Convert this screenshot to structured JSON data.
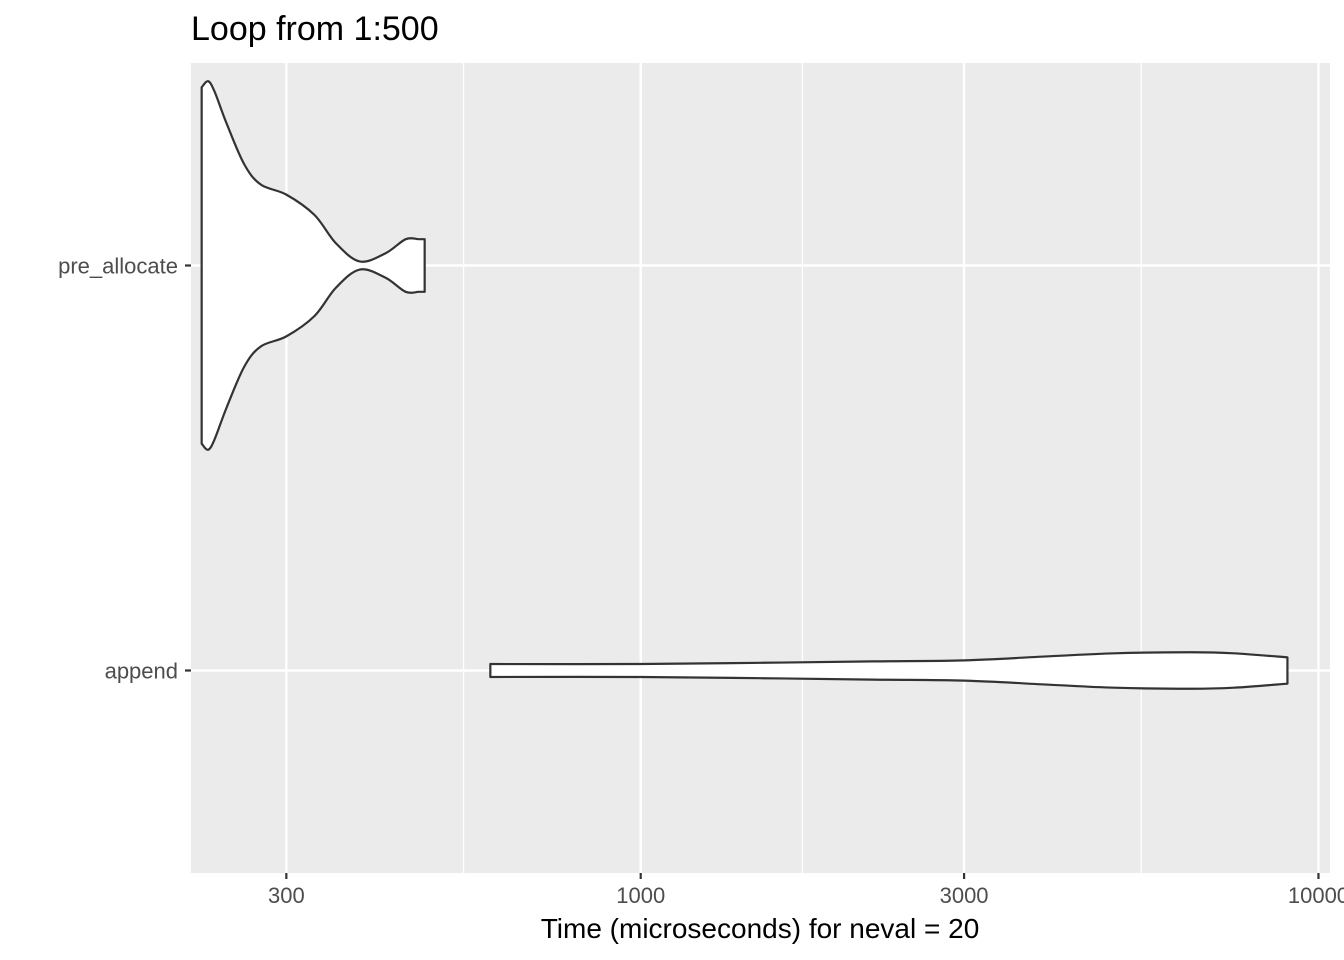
{
  "chart_data": {
    "type": "violin",
    "title": "Loop from 1:500",
    "xlabel": "Time (microseconds) for neval = 20",
    "ylabel": "",
    "x_scale": "log10",
    "xlim": [
      217,
      10400
    ],
    "x_ticks": [
      300,
      1000,
      3000,
      10000
    ],
    "x_tick_labels": [
      "300",
      "1000",
      "3000",
      "10000"
    ],
    "categories": [
      "pre_allocate",
      "append"
    ],
    "grid": true,
    "background": "#ebebeb",
    "gridline_color": "#ffffff",
    "violin_fill": "#ffffff",
    "violin_stroke": "#333333",
    "series": [
      {
        "category": "pre_allocate",
        "min": 225,
        "max": 480,
        "density": [
          {
            "x": 225,
            "w": 0.88
          },
          {
            "x": 230,
            "w": 0.91
          },
          {
            "x": 235,
            "w": 0.86
          },
          {
            "x": 245,
            "w": 0.7
          },
          {
            "x": 260,
            "w": 0.5
          },
          {
            "x": 275,
            "w": 0.4
          },
          {
            "x": 300,
            "w": 0.35
          },
          {
            "x": 330,
            "w": 0.25
          },
          {
            "x": 355,
            "w": 0.11
          },
          {
            "x": 385,
            "w": 0.02
          },
          {
            "x": 420,
            "w": 0.06
          },
          {
            "x": 450,
            "w": 0.13
          },
          {
            "x": 470,
            "w": 0.13
          },
          {
            "x": 480,
            "w": 0.13
          }
        ]
      },
      {
        "category": "append",
        "min": 600,
        "max": 9000,
        "density": [
          {
            "x": 600,
            "w": 0.032
          },
          {
            "x": 1000,
            "w": 0.032
          },
          {
            "x": 1500,
            "w": 0.038
          },
          {
            "x": 2200,
            "w": 0.045
          },
          {
            "x": 3000,
            "w": 0.05
          },
          {
            "x": 4000,
            "w": 0.07
          },
          {
            "x": 5000,
            "w": 0.085
          },
          {
            "x": 6500,
            "w": 0.09
          },
          {
            "x": 7500,
            "w": 0.085
          },
          {
            "x": 9000,
            "w": 0.065
          }
        ]
      }
    ]
  }
}
